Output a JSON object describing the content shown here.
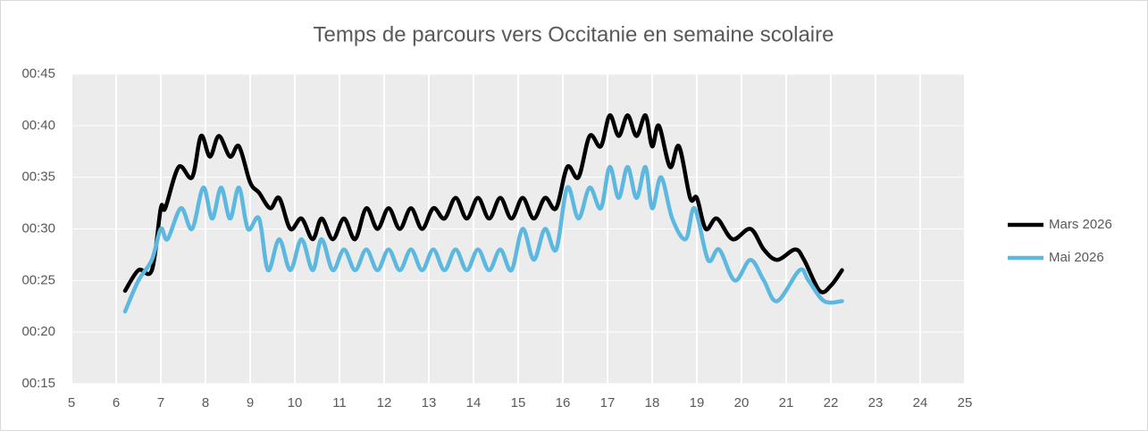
{
  "chart_data": {
    "type": "line",
    "title": "Temps de parcours vers Occitanie en semaine scolaire",
    "xlim": [
      5,
      25
    ],
    "xticks": [
      5,
      6,
      7,
      8,
      9,
      10,
      11,
      12,
      13,
      14,
      15,
      16,
      17,
      18,
      19,
      20,
      21,
      22,
      23,
      24,
      25
    ],
    "ylim": [
      15,
      45
    ],
    "yticks": [
      {
        "value": 15,
        "label": "00:15"
      },
      {
        "value": 20,
        "label": "00:20"
      },
      {
        "value": 25,
        "label": "00:25"
      },
      {
        "value": 30,
        "label": "00:30"
      },
      {
        "value": 35,
        "label": "00:35"
      },
      {
        "value": 40,
        "label": "00:40"
      },
      {
        "value": 45,
        "label": "00:45"
      }
    ],
    "grid": true,
    "legend": "right",
    "series": [
      {
        "name": "Mars 2026",
        "color": "#000000",
        "x": [
          6.2,
          6.5,
          6.8,
          7.0,
          7.1,
          7.4,
          7.7,
          7.9,
          8.1,
          8.3,
          8.55,
          8.75,
          9.0,
          9.2,
          9.45,
          9.65,
          9.9,
          10.15,
          10.4,
          10.6,
          10.85,
          11.1,
          11.35,
          11.6,
          11.85,
          12.1,
          12.35,
          12.6,
          12.85,
          13.1,
          13.35,
          13.6,
          13.85,
          14.1,
          14.35,
          14.6,
          14.85,
          15.1,
          15.35,
          15.6,
          15.85,
          16.1,
          16.35,
          16.6,
          16.85,
          17.05,
          17.25,
          17.45,
          17.65,
          17.85,
          18.0,
          18.15,
          18.4,
          18.6,
          18.85,
          19.0,
          19.2,
          19.45,
          19.8,
          20.2,
          20.5,
          20.8,
          21.2,
          21.4,
          21.75,
          22.0,
          22.25
        ],
        "values": [
          24,
          26,
          26,
          32,
          32,
          36,
          35,
          39,
          37,
          39,
          37,
          38,
          34.5,
          33.5,
          32,
          33,
          30,
          31,
          29,
          31,
          29,
          31,
          29,
          32,
          30,
          32,
          30,
          32,
          30,
          32,
          31,
          33,
          31,
          33,
          31,
          33,
          31,
          33,
          31,
          33,
          32,
          36,
          35,
          39,
          38,
          41,
          39,
          41,
          39,
          41,
          38,
          40,
          36,
          38,
          33,
          33,
          30,
          31,
          29,
          30,
          28,
          27,
          28,
          27,
          24,
          24.5,
          26
        ]
      },
      {
        "name": "Mai 2026",
        "color": "#5db8e0",
        "x": [
          6.2,
          6.5,
          6.8,
          7.0,
          7.15,
          7.45,
          7.7,
          7.95,
          8.15,
          8.35,
          8.55,
          8.75,
          8.95,
          9.2,
          9.4,
          9.65,
          9.9,
          10.15,
          10.4,
          10.6,
          10.85,
          11.1,
          11.35,
          11.6,
          11.85,
          12.1,
          12.35,
          12.6,
          12.85,
          13.1,
          13.35,
          13.6,
          13.85,
          14.1,
          14.35,
          14.6,
          14.85,
          15.1,
          15.35,
          15.6,
          15.85,
          16.1,
          16.35,
          16.6,
          16.85,
          17.05,
          17.25,
          17.45,
          17.65,
          17.85,
          18.0,
          18.2,
          18.45,
          18.75,
          18.95,
          19.25,
          19.5,
          19.85,
          20.2,
          20.5,
          20.8,
          21.3,
          21.5,
          21.85,
          22.25
        ],
        "values": [
          22,
          25,
          27,
          30,
          29,
          32,
          30,
          34,
          31,
          34,
          31,
          34,
          30,
          31,
          26,
          29,
          26,
          29,
          26,
          29,
          26,
          28,
          26,
          28,
          26,
          28,
          26,
          28,
          26,
          28,
          26,
          28,
          26,
          28,
          26,
          28,
          26,
          30,
          27,
          30,
          28,
          34,
          31,
          34,
          32,
          36,
          33,
          36,
          33,
          36,
          32,
          35,
          31,
          29,
          32,
          27,
          28,
          25,
          27,
          25,
          23,
          26,
          25,
          23,
          23
        ]
      }
    ]
  }
}
